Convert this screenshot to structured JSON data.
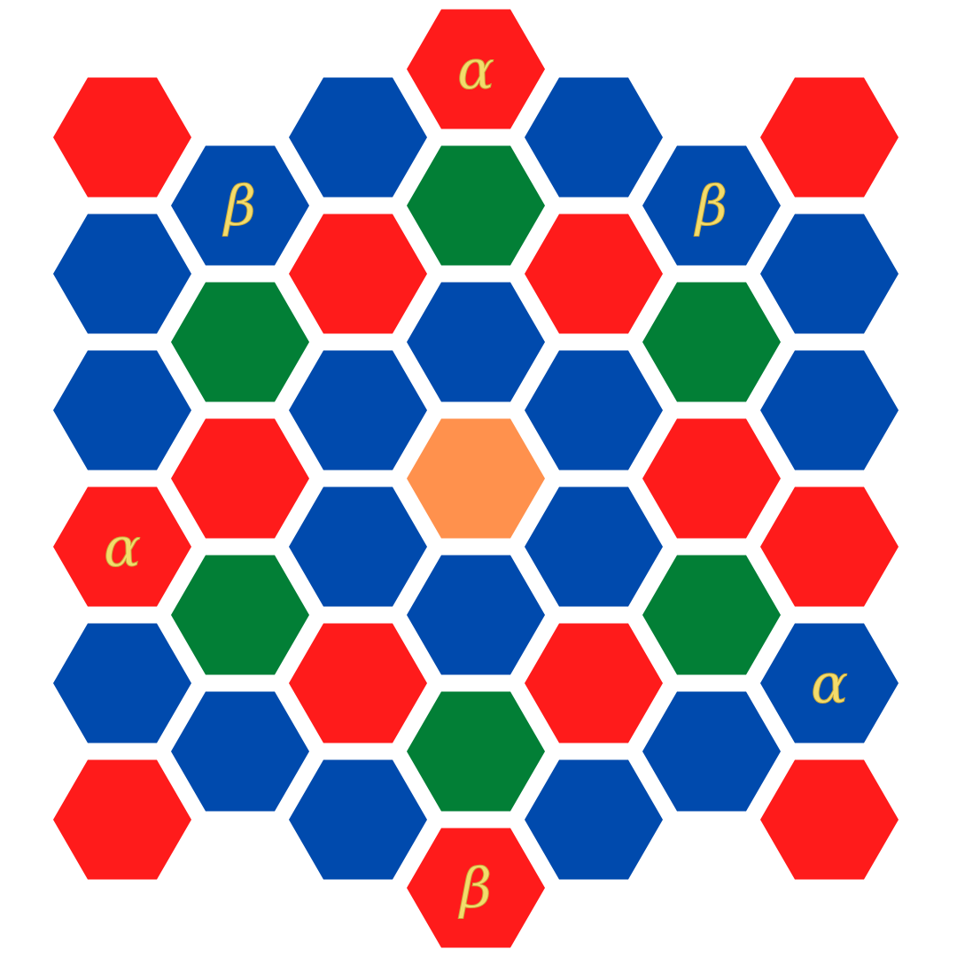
{
  "board": {
    "palette": {
      "red": "#ff1b1b",
      "blue": "#004aad",
      "green": "#027f36",
      "orange": "#ff914d",
      "label": "#f3dc6c",
      "background": "#ffffff"
    },
    "center_cell": "cell-0-0",
    "columns": [
      {
        "index": -3,
        "cells": [
          "red",
          "blue",
          "blue",
          "red",
          "blue",
          "red"
        ]
      },
      {
        "index": -2,
        "cells": [
          "blue",
          "green",
          "red",
          "green",
          "blue"
        ]
      },
      {
        "index": -1,
        "cells": [
          "blue",
          "red",
          "blue",
          "blue",
          "red",
          "blue"
        ]
      },
      {
        "index": 0,
        "cells": [
          "red",
          "green",
          "blue",
          "orange",
          "blue",
          "green",
          "red"
        ]
      },
      {
        "index": 1,
        "cells": [
          "blue",
          "red",
          "blue",
          "blue",
          "red",
          "blue"
        ]
      },
      {
        "index": 2,
        "cells": [
          "blue",
          "green",
          "red",
          "green",
          "blue"
        ]
      },
      {
        "index": 3,
        "cells": [
          "red",
          "blue",
          "blue",
          "red",
          "blue",
          "red"
        ]
      }
    ],
    "labels": [
      {
        "col": 0,
        "row": 0,
        "text": "α"
      },
      {
        "col": -2,
        "row": 0,
        "text": "β"
      },
      {
        "col": 2,
        "row": 0,
        "text": "β"
      },
      {
        "col": -3,
        "row": 3,
        "text": "α"
      },
      {
        "col": 3,
        "row": 4,
        "text": "α"
      },
      {
        "col": 0,
        "row": 6,
        "text": "β"
      }
    ]
  }
}
